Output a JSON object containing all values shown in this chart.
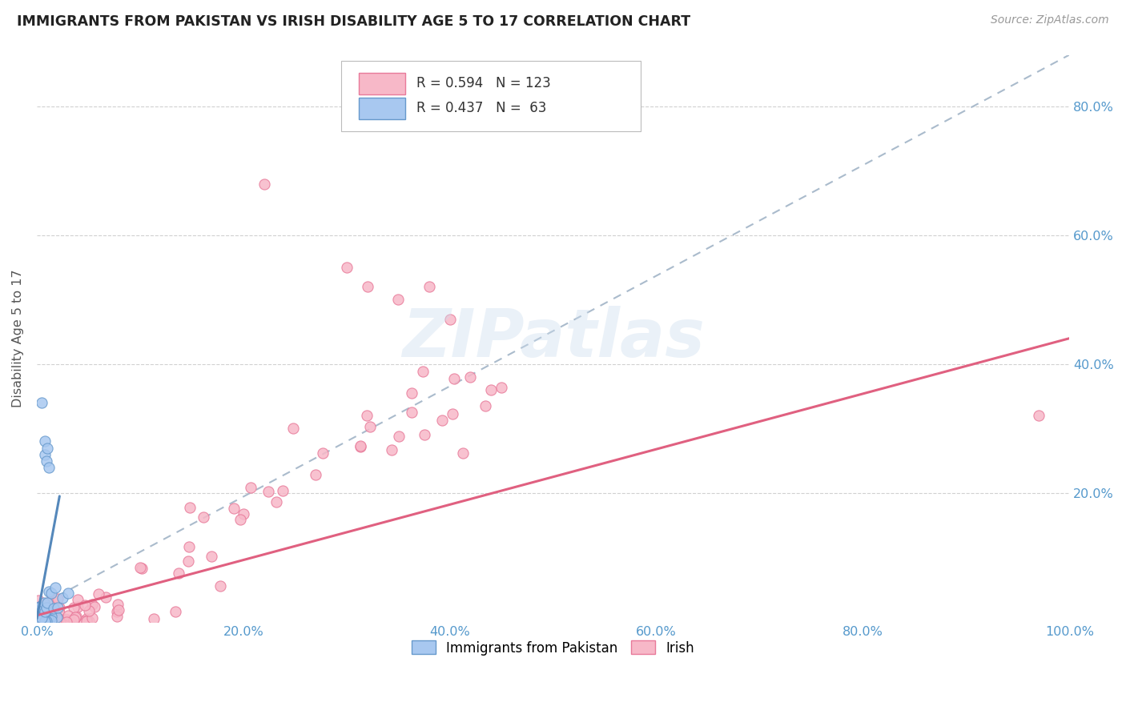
{
  "title": "IMMIGRANTS FROM PAKISTAN VS IRISH DISABILITY AGE 5 TO 17 CORRELATION CHART",
  "source": "Source: ZipAtlas.com",
  "ylabel": "Disability Age 5 to 17",
  "xlim": [
    0,
    1.0
  ],
  "ylim": [
    0,
    0.88
  ],
  "xticks": [
    0.0,
    0.2,
    0.4,
    0.6,
    0.8,
    1.0
  ],
  "yticks": [
    0.2,
    0.4,
    0.6,
    0.8
  ],
  "xtick_labels": [
    "0.0%",
    "20.0%",
    "40.0%",
    "60.0%",
    "80.0%",
    "100.0%"
  ],
  "ytick_labels": [
    "20.0%",
    "40.0%",
    "60.0%",
    "80.0%"
  ],
  "legend_blue_label": "Immigrants from Pakistan",
  "legend_pink_label": "Irish",
  "blue_color": "#a8c8f0",
  "pink_color": "#f7b8c8",
  "blue_edge_color": "#6699cc",
  "pink_edge_color": "#e87a9a",
  "blue_line_color": "#5588bb",
  "pink_line_color": "#e06080",
  "dashed_line_color": "#aabbcc",
  "watermark": "ZIPatlas",
  "background_color": "#ffffff",
  "grid_color": "#cccccc",
  "tick_color": "#5599cc",
  "title_color": "#222222",
  "source_color": "#999999"
}
